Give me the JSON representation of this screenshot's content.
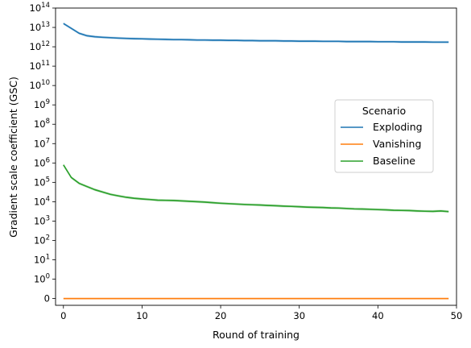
{
  "chart_data": {
    "type": "line",
    "xlabel": "Round of training",
    "ylabel": "Gradient scale coefficient (GSC)",
    "xlim": [
      -1,
      50
    ],
    "x_ticks": [
      0,
      10,
      20,
      30,
      40,
      50
    ],
    "y_scale": "symlog",
    "ylim": [
      -0.35,
      15.0
    ],
    "y_ticks": [
      {
        "value": 0,
        "label": "0"
      },
      {
        "value": 1,
        "label": "10^0"
      },
      {
        "value": 10,
        "label": "10^1"
      },
      {
        "value": 100,
        "label": "10^2"
      },
      {
        "value": 1000,
        "label": "10^3"
      },
      {
        "value": 10000,
        "label": "10^4"
      },
      {
        "value": 100000,
        "label": "10^5"
      },
      {
        "value": 1000000,
        "label": "10^6"
      },
      {
        "value": 10000000,
        "label": "10^7"
      },
      {
        "value": 100000000,
        "label": "10^8"
      },
      {
        "value": 1000000000,
        "label": "10^9"
      },
      {
        "value": 10000000000,
        "label": "10^10"
      },
      {
        "value": 100000000000,
        "label": "10^11"
      },
      {
        "value": 1000000000000,
        "label": "10^12"
      },
      {
        "value": 10000000000000,
        "label": "10^13"
      },
      {
        "value": 100000000000000,
        "label": "10^14"
      }
    ],
    "grid": false,
    "legend": {
      "title": "Scenario",
      "placement": "center-right"
    },
    "x": [
      0,
      1,
      2,
      3,
      4,
      5,
      6,
      7,
      8,
      9,
      10,
      11,
      12,
      13,
      14,
      15,
      16,
      17,
      18,
      19,
      20,
      21,
      22,
      23,
      24,
      25,
      26,
      27,
      28,
      29,
      30,
      31,
      32,
      33,
      34,
      35,
      36,
      37,
      38,
      39,
      40,
      41,
      42,
      43,
      44,
      45,
      46,
      47,
      48,
      49
    ],
    "series": [
      {
        "name": "Exploding",
        "color": "#1f77b4",
        "log10_values": [
          13.2,
          12.95,
          12.7,
          12.57,
          12.52,
          12.49,
          12.47,
          12.45,
          12.43,
          12.42,
          12.41,
          12.4,
          12.39,
          12.38,
          12.37,
          12.37,
          12.36,
          12.35,
          12.35,
          12.34,
          12.34,
          12.33,
          12.33,
          12.32,
          12.32,
          12.31,
          12.31,
          12.31,
          12.3,
          12.3,
          12.29,
          12.29,
          12.29,
          12.28,
          12.28,
          12.28,
          12.27,
          12.27,
          12.27,
          12.27,
          12.26,
          12.26,
          12.26,
          12.25,
          12.25,
          12.25,
          12.25,
          12.24,
          12.24,
          12.24
        ]
      },
      {
        "name": "Vanishing",
        "color": "#ff7f0e",
        "values": [
          0,
          0,
          0,
          0,
          0,
          0,
          0,
          0,
          0,
          0,
          0,
          0,
          0,
          0,
          0,
          0,
          0,
          0,
          0,
          0,
          0,
          0,
          0,
          0,
          0,
          0,
          0,
          0,
          0,
          0,
          0,
          0,
          0,
          0,
          0,
          0,
          0,
          0,
          0,
          0,
          0,
          0,
          0,
          0,
          0,
          0,
          0,
          0,
          0,
          0
        ]
      },
      {
        "name": "Baseline",
        "color": "#2ca02c",
        "log10_values": [
          5.9,
          5.25,
          4.95,
          4.78,
          4.62,
          4.5,
          4.38,
          4.3,
          4.23,
          4.18,
          4.14,
          4.11,
          4.08,
          4.07,
          4.06,
          4.04,
          4.02,
          4.0,
          3.98,
          3.95,
          3.92,
          3.9,
          3.88,
          3.86,
          3.84,
          3.83,
          3.81,
          3.79,
          3.77,
          3.76,
          3.74,
          3.72,
          3.71,
          3.7,
          3.68,
          3.67,
          3.65,
          3.63,
          3.62,
          3.61,
          3.59,
          3.58,
          3.56,
          3.55,
          3.54,
          3.52,
          3.51,
          3.5,
          3.52,
          3.49
        ]
      }
    ]
  }
}
